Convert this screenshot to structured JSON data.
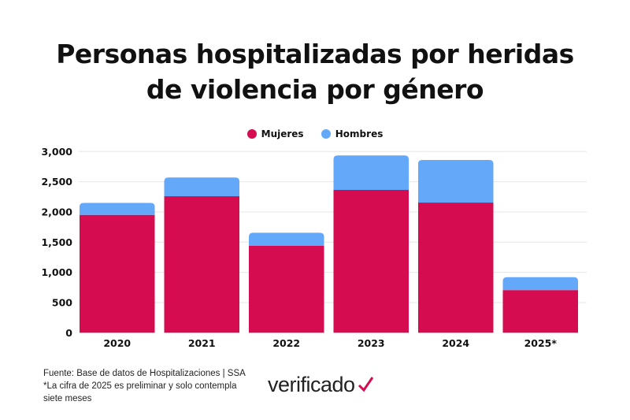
{
  "chart_data": {
    "type": "bar",
    "stacked": true,
    "title": "Personas hospitalizadas por heridas de violencia por género",
    "title_lines": [
      "Personas hospitalizadas por heridas",
      "de violencia por género"
    ],
    "categories": [
      "2020",
      "2021",
      "2022",
      "2023",
      "2024",
      "2025*"
    ],
    "series": [
      {
        "name": "Mujeres",
        "color": "#D50C50",
        "values": [
          1950,
          2260,
          1440,
          2365,
          2155,
          705
        ]
      },
      {
        "name": "Hombres",
        "color": "#64A8F9",
        "values": [
          200,
          310,
          215,
          570,
          705,
          215
        ]
      }
    ],
    "yticks": [
      "0",
      "500",
      "1,000",
      "1,500",
      "2,000",
      "2,500",
      "3,000"
    ],
    "ylim": [
      0,
      3000
    ],
    "grid": true,
    "legend": "top-center"
  },
  "footer": {
    "source": "Fuente: Base de datos de Hospitalizaciones | SSA",
    "note": "*La cifra de 2025 es preliminar y solo contempla siete meses"
  },
  "logo": "verificado"
}
